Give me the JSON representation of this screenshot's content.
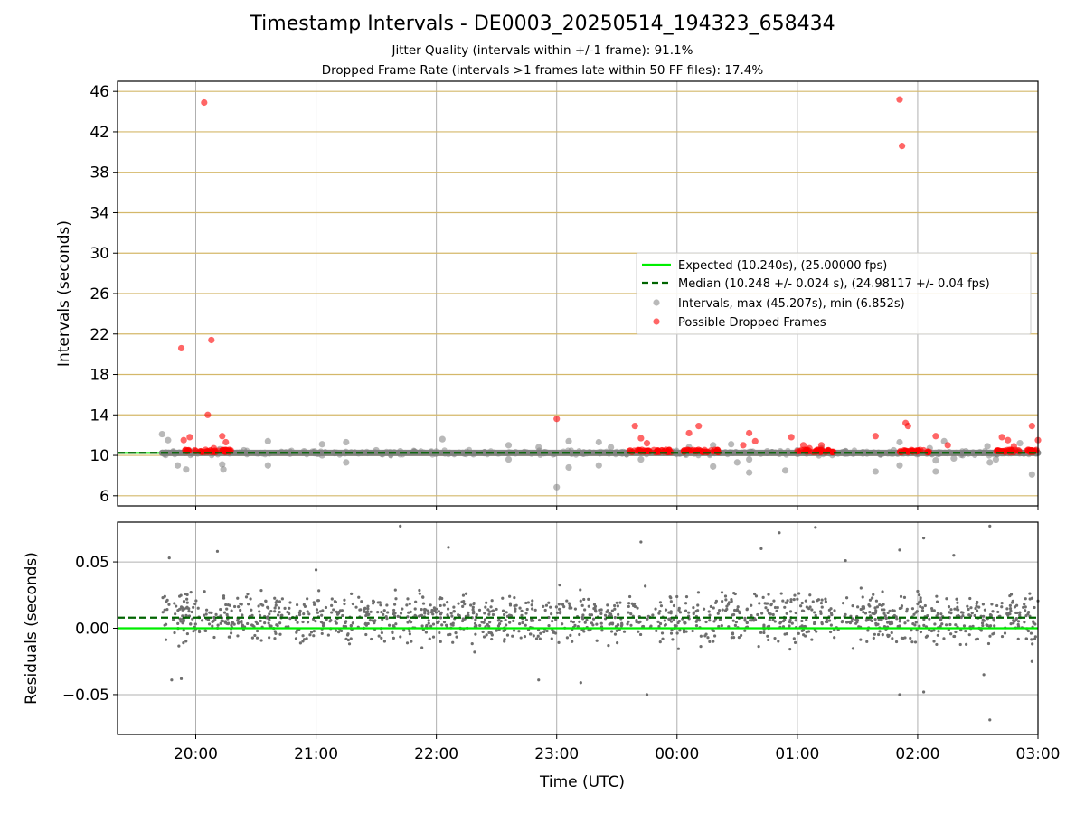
{
  "chart_data": [
    {
      "type": "scatter",
      "title": "Timestamp Intervals - DE0003_20250514_194323_658434",
      "subtitle_lines": [
        "Jitter Quality (intervals within +/-1 frame): 91.1%",
        "Dropped Frame Rate (intervals >1 frames late within 50 FF files): 17.4%"
      ],
      "xlabel": "",
      "ylabel": "Intervals (seconds)",
      "x_unit": "hours since 19:00 UTC (2025-05-14)",
      "xlim": [
        0.35,
        8.0
      ],
      "ylim": [
        5.0,
        47.0
      ],
      "y_ticks": [
        6,
        10,
        14,
        18,
        22,
        26,
        30,
        34,
        38,
        42,
        46
      ],
      "x_ticks": [
        1,
        2,
        3,
        4,
        5,
        6,
        7,
        8
      ],
      "grid": true,
      "legend_placement": "right",
      "legend": [
        "Expected (10.240s), (25.00000 fps)",
        "Median (10.248 +/- 0.024 s), (24.98117 +/- 0.04 fps)",
        "Intervals, max (45.207s), min (6.852s)",
        "Possible Dropped Frames"
      ],
      "colors": {
        "expected": "#00ee00",
        "median": "#006400",
        "intervals": "#808080",
        "dropped": "#ff0000",
        "grid_major": "#b0b0b0",
        "grid_y": "#d4b86a"
      },
      "series": [
        {
          "name": "Expected (10.240s), (25.00000 fps)",
          "kind": "hline",
          "y": 10.24
        },
        {
          "name": "Median (10.248 +/- 0.024 s), (24.98117 +/- 0.04 fps)",
          "kind": "hline-dashed",
          "y": 10.248
        },
        {
          "name": "Intervals, max (45.207s), min (6.852s)",
          "kind": "scatter",
          "band": {
            "x_start": 0.72,
            "x_end": 8.0,
            "y": 10.24
          },
          "points": [
            [
              0.72,
              12.1
            ],
            [
              0.77,
              11.5
            ],
            [
              0.85,
              9.0
            ],
            [
              0.92,
              8.6
            ],
            [
              0.98,
              10.4
            ],
            [
              1.1,
              10.3
            ],
            [
              1.2,
              10.6
            ],
            [
              1.22,
              9.1
            ],
            [
              1.23,
              8.6
            ],
            [
              1.3,
              10.3
            ],
            [
              1.4,
              10.5
            ],
            [
              1.6,
              11.4
            ],
            [
              1.6,
              9.0
            ],
            [
              1.9,
              10.4
            ],
            [
              2.0,
              10.2
            ],
            [
              2.05,
              11.1
            ],
            [
              2.05,
              10.0
            ],
            [
              2.25,
              11.3
            ],
            [
              2.25,
              9.3
            ],
            [
              2.5,
              10.5
            ],
            [
              2.7,
              10.4
            ],
            [
              3.05,
              11.6
            ],
            [
              3.15,
              10.2
            ],
            [
              3.4,
              10.3
            ],
            [
              3.6,
              11.0
            ],
            [
              3.6,
              9.6
            ],
            [
              3.85,
              10.8
            ],
            [
              4.0,
              6.85
            ],
            [
              4.1,
              11.4
            ],
            [
              4.1,
              8.8
            ],
            [
              4.35,
              11.3
            ],
            [
              4.35,
              9.0
            ],
            [
              4.45,
              10.8
            ],
            [
              4.7,
              9.6
            ],
            [
              4.75,
              10.4
            ],
            [
              5.05,
              10.3
            ],
            [
              5.1,
              10.8
            ],
            [
              5.3,
              11.0
            ],
            [
              5.3,
              8.9
            ],
            [
              5.45,
              11.1
            ],
            [
              5.5,
              9.3
            ],
            [
              5.6,
              8.3
            ],
            [
              5.6,
              9.6
            ],
            [
              5.75,
              10.4
            ],
            [
              5.9,
              8.5
            ],
            [
              6.0,
              10.5
            ],
            [
              6.2,
              10.7
            ],
            [
              6.4,
              10.4
            ],
            [
              6.55,
              10.3
            ],
            [
              6.65,
              8.4
            ],
            [
              6.8,
              10.5
            ],
            [
              6.85,
              11.3
            ],
            [
              6.85,
              9.0
            ],
            [
              7.1,
              10.7
            ],
            [
              7.15,
              8.4
            ],
            [
              7.15,
              9.5
            ],
            [
              7.22,
              11.4
            ],
            [
              7.3,
              9.7
            ],
            [
              7.4,
              10.4
            ],
            [
              7.58,
              10.9
            ],
            [
              7.6,
              9.3
            ],
            [
              7.65,
              9.6
            ],
            [
              7.7,
              10.2
            ],
            [
              7.85,
              11.2
            ],
            [
              7.95,
              8.1
            ]
          ]
        },
        {
          "name": "Possible Dropped Frames",
          "kind": "scatter",
          "points": [
            [
              0.88,
              20.6
            ],
            [
              0.9,
              11.5
            ],
            [
              0.95,
              11.8
            ],
            [
              1.07,
              44.9
            ],
            [
              1.1,
              14.0
            ],
            [
              1.13,
              21.4
            ],
            [
              1.15,
              10.7
            ],
            [
              1.22,
              11.9
            ],
            [
              1.25,
              11.3
            ],
            [
              4.0,
              13.6
            ],
            [
              4.65,
              12.9
            ],
            [
              4.7,
              11.7
            ],
            [
              4.75,
              11.2
            ],
            [
              5.1,
              12.2
            ],
            [
              5.18,
              12.9
            ],
            [
              5.55,
              11.0
            ],
            [
              5.6,
              12.2
            ],
            [
              5.65,
              11.4
            ],
            [
              5.95,
              11.8
            ],
            [
              6.05,
              11.0
            ],
            [
              6.1,
              10.7
            ],
            [
              6.2,
              11.0
            ],
            [
              6.65,
              11.9
            ],
            [
              6.85,
              45.2
            ],
            [
              6.87,
              40.6
            ],
            [
              6.9,
              13.2
            ],
            [
              6.92,
              12.9
            ],
            [
              7.15,
              11.9
            ],
            [
              7.25,
              11.0
            ],
            [
              7.7,
              11.8
            ],
            [
              7.75,
              11.5
            ],
            [
              7.8,
              10.9
            ],
            [
              7.95,
              12.9
            ],
            [
              8.0,
              11.5
            ]
          ],
          "clusters": [
            [
              0.9,
              1.3
            ],
            [
              4.6,
              4.95
            ],
            [
              5.05,
              5.35
            ],
            [
              6.0,
              6.3
            ],
            [
              6.85,
              7.1
            ],
            [
              7.65,
              7.85
            ],
            [
              7.9,
              8.0
            ]
          ]
        }
      ]
    },
    {
      "type": "scatter",
      "title": "",
      "xlabel": "Time (UTC)",
      "ylabel": "Residuals (seconds)",
      "xlim": [
        0.35,
        8.0
      ],
      "ylim": [
        -0.08,
        0.08
      ],
      "y_ticks": [
        0.05,
        0.0,
        -0.05
      ],
      "y_tick_labels": [
        "0.05",
        "0.00",
        "−0.05"
      ],
      "x_ticks": [
        1,
        2,
        3,
        4,
        5,
        6,
        7,
        8
      ],
      "x_tick_labels": [
        "20:00",
        "21:00",
        "22:00",
        "23:00",
        "00:00",
        "01:00",
        "02:00",
        "03:00"
      ],
      "grid": true,
      "series": [
        {
          "name": "",
          "kind": "hline",
          "y": 0.0
        },
        {
          "name": "",
          "kind": "hline-dashed",
          "y": 0.008
        },
        {
          "name": "",
          "kind": "scatter",
          "x_range": [
            0.72,
            8.0
          ],
          "mean": 0.008,
          "spread": 0.012,
          "outliers": [
            [
              0.78,
              0.053
            ],
            [
              0.8,
              -0.039
            ],
            [
              0.88,
              -0.038
            ],
            [
              1.18,
              0.058
            ],
            [
              2.0,
              0.044
            ],
            [
              2.7,
              0.077
            ],
            [
              3.1,
              0.061
            ],
            [
              3.85,
              -0.039
            ],
            [
              4.2,
              -0.041
            ],
            [
              4.7,
              0.065
            ],
            [
              4.75,
              -0.05
            ],
            [
              5.7,
              0.06
            ],
            [
              5.85,
              0.072
            ],
            [
              6.15,
              0.076
            ],
            [
              6.4,
              0.051
            ],
            [
              6.85,
              0.059
            ],
            [
              6.85,
              -0.05
            ],
            [
              7.05,
              0.068
            ],
            [
              7.05,
              -0.048
            ],
            [
              7.3,
              0.055
            ],
            [
              7.6,
              0.077
            ],
            [
              7.6,
              -0.069
            ],
            [
              7.55,
              -0.035
            ],
            [
              7.95,
              -0.025
            ]
          ]
        }
      ]
    }
  ]
}
